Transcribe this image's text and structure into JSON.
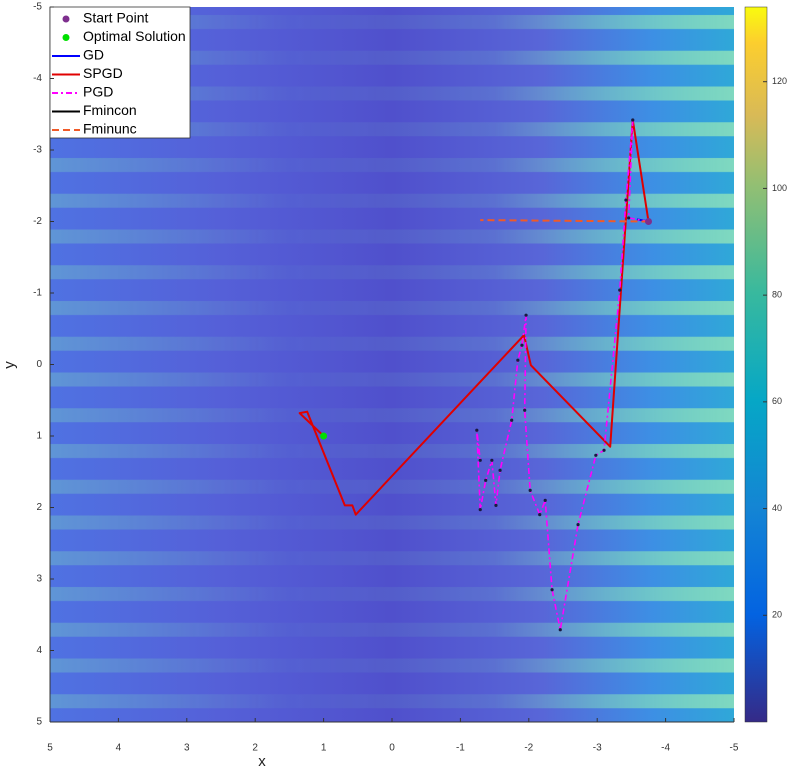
{
  "chart_data": {
    "type": "line",
    "xlabel": "x",
    "ylabel": "y",
    "xlim": [
      5,
      -5
    ],
    "xticks": [
      5,
      4,
      3,
      2,
      1,
      0,
      -1,
      -2,
      -3,
      -4,
      -5
    ],
    "ylim": [
      -5,
      5
    ],
    "yticks": [
      -5,
      -4,
      -3,
      -2,
      -1,
      0,
      1,
      2,
      3,
      4,
      5
    ],
    "colorbar": {
      "lim": [
        0,
        134
      ],
      "ticks": [
        20,
        40,
        60,
        80,
        100,
        120
      ]
    },
    "legend": "top-left",
    "series": [
      {
        "name": "Start Point",
        "kind": "marker",
        "color": "#7e2f8e",
        "x": [
          -3.75
        ],
        "y": [
          -2
        ]
      },
      {
        "name": "Optimal Solution",
        "kind": "marker",
        "color": "#00e000",
        "x": [
          1
        ],
        "y": [
          1
        ]
      },
      {
        "name": "GD",
        "kind": "solid",
        "color": "#0000ff",
        "x": [
          -3.75,
          -3.58
        ],
        "y": [
          -2,
          -2.03
        ]
      },
      {
        "name": "SPGD",
        "kind": "solid",
        "color": "#e00000",
        "x": [
          -3.75,
          -3.52,
          -3.19,
          -2.03,
          -1.93,
          0.53,
          0.58,
          0.69,
          1.24,
          1.35,
          1.0
        ],
        "y": [
          -2,
          -3.42,
          1.15,
          0.01,
          -0.41,
          2.1,
          1.97,
          1.97,
          0.66,
          0.68,
          1.0
        ]
      },
      {
        "name": "PGD",
        "kind": "dashdot",
        "color": "#ff00ff",
        "x": [
          -3.75,
          -3.46,
          -3.52,
          -3.42,
          -3.33,
          -3.1,
          -2.98,
          -2.72,
          -2.46,
          -2.34,
          -2.24,
          -2.16,
          -2.02,
          -1.94,
          -1.96,
          -1.9,
          -1.84,
          -1.75,
          -1.58,
          -1.52,
          -1.46,
          -1.37,
          -1.29,
          -1.24,
          -1.29
        ],
        "y": [
          -2,
          -2.05,
          -3.42,
          -2.3,
          -1.04,
          1.2,
          1.27,
          2.24,
          3.71,
          3.15,
          1.9,
          2.1,
          1.76,
          0.64,
          -0.69,
          -0.27,
          -0.06,
          0.78,
          1.48,
          1.97,
          1.34,
          1.62,
          2.03,
          0.92,
          1.34
        ]
      },
      {
        "name": "Fmincon",
        "kind": "solid",
        "color": "#000000",
        "x": [
          -3.75
        ],
        "y": [
          -2
        ]
      },
      {
        "name": "Fminunc",
        "kind": "dashed",
        "color": "#f05a28",
        "x": [
          -3.75,
          -1.29
        ],
        "y": [
          -2,
          -2.02
        ]
      }
    ]
  }
}
